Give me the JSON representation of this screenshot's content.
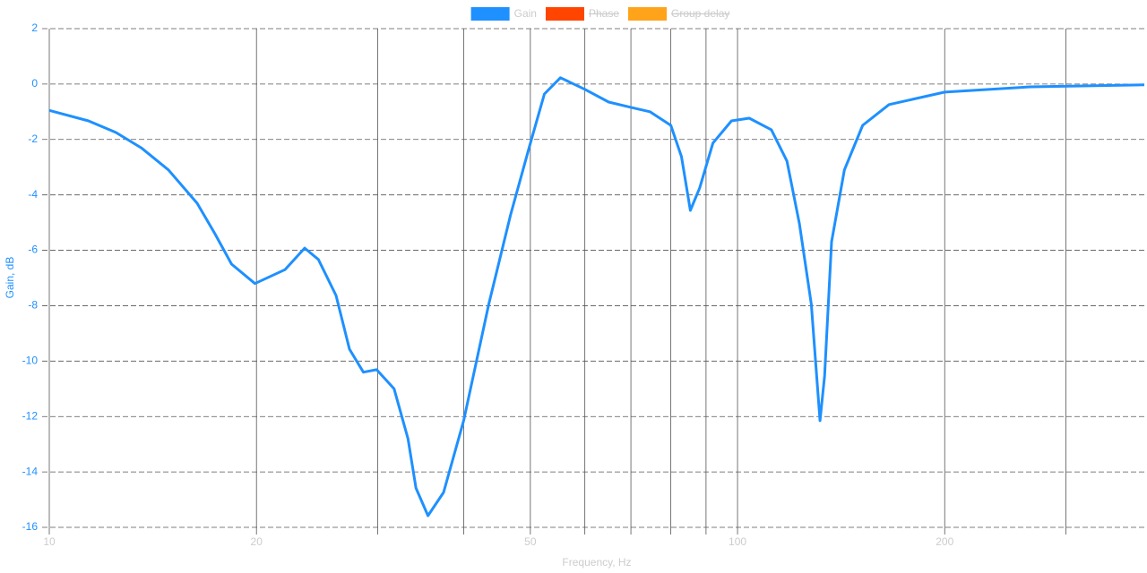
{
  "chart_data": {
    "type": "line",
    "x_label": "Frequency, Hz",
    "y_label": "Gain, dB",
    "x_log": true,
    "xlim": [
      10,
      390
    ],
    "ylim": [
      -16,
      2
    ],
    "xticks": [
      10,
      20,
      50,
      100,
      200
    ],
    "xminor": [
      30,
      40,
      60,
      70,
      80,
      90,
      300
    ],
    "yticks": [
      -16,
      -14,
      -12,
      -10,
      -8,
      -6,
      -4,
      -2,
      0,
      2
    ],
    "grid": true,
    "legend": "top",
    "x": [
      10,
      11.4,
      12.5,
      13.6,
      14.9,
      16.4,
      17.4,
      18.4,
      19.9,
      22.0,
      23.5,
      24.6,
      26.1,
      27.3,
      28.6,
      29.9,
      31.7,
      33.2,
      34.1,
      35.5,
      37.4,
      40.0,
      43.5,
      46.8,
      49.8,
      52.4,
      55.3,
      60,
      65,
      70,
      74.6,
      80,
      82.9,
      85.4,
      88.1,
      92.1,
      98,
      104,
      112,
      118,
      123,
      128,
      130.6,
      131.8,
      133.8,
      137,
      143,
      152,
      166,
      200,
      266,
      390
    ],
    "series": [
      {
        "name": "Gain",
        "color": "#1e90ff",
        "values": [
          -0.95,
          -1.33,
          -1.75,
          -2.3,
          -3.1,
          -4.3,
          -5.4,
          -6.5,
          -7.2,
          -6.7,
          -5.92,
          -6.33,
          -7.63,
          -9.57,
          -10.4,
          -10.31,
          -11.0,
          -12.8,
          -14.58,
          -15.58,
          -14.74,
          -12.15,
          -7.95,
          -4.72,
          -2.29,
          -0.36,
          0.23,
          -0.19,
          -0.65,
          -0.84,
          -1.0,
          -1.49,
          -2.62,
          -4.56,
          -3.75,
          -2.13,
          -1.33,
          -1.23,
          -1.65,
          -2.78,
          -5.04,
          -7.95,
          -10.86,
          -12.15,
          -10.54,
          -5.69,
          -3.1,
          -1.49,
          -0.74,
          -0.29,
          -0.1,
          -0.03
        ]
      }
    ],
    "hidden_series": [
      {
        "name": "Phase",
        "color": "#ff4500"
      },
      {
        "name": "Group delay",
        "color": "#ffa31a"
      }
    ]
  }
}
